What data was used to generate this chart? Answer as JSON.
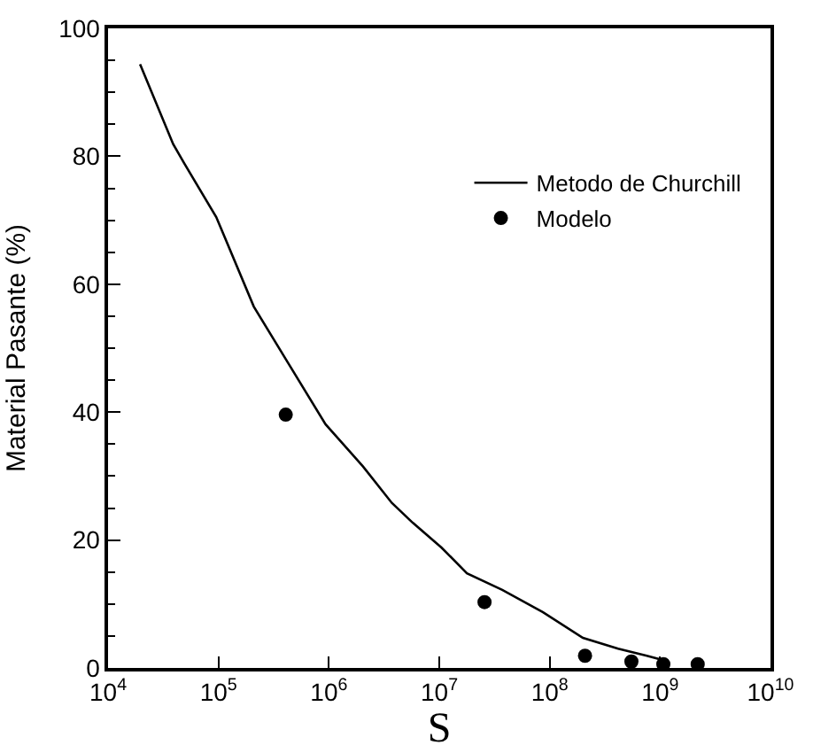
{
  "chart_data": {
    "type": "line",
    "xlabel": "S",
    "ylabel": "Material Pasante (%)",
    "log": "x",
    "xlim": [
      10000,
      10000000000
    ],
    "xticks": [
      {
        "value": 10000,
        "label": "10$^{4}$"
      },
      {
        "value": 100000,
        "label": "10$^{5}$"
      },
      {
        "value": 1000000,
        "label": "10$^{6}$"
      },
      {
        "value": 10000000,
        "label": "10$^{7}$"
      },
      {
        "value": 100000000,
        "label": "10$^{8}$"
      },
      {
        "value": 1000000000,
        "label": "10$^{9}$"
      },
      {
        "value": 10000000000,
        "label": "10$^{10}$"
      }
    ],
    "ylim": [
      0,
      100
    ],
    "yticks": [
      0,
      20,
      40,
      60,
      80,
      100
    ],
    "legend": "top right",
    "series": [
      {
        "name": "Metodo de Churchill",
        "color": "#000000",
        "line_style": "solid",
        "marker": "none",
        "x": [
          19500,
          38900,
          49000,
          95500,
          209000,
          427000,
          933000,
          2040000,
          3720000,
          5750000,
          10500000,
          17800000,
          37200000,
          87100000,
          200000000,
          417000000,
          759000000,
          1070000000
        ],
        "values": [
          94.4,
          81.9,
          78.9,
          70.5,
          56.5,
          47.7,
          38.1,
          31.5,
          25.8,
          22.7,
          18.8,
          14.8,
          12.2,
          8.7,
          4.7,
          3.0,
          1.9,
          1.2
        ]
      },
      {
        "name": "Modelo",
        "type": "scatter",
        "color": "#000000",
        "marker": "circle",
        "x": [
          407000,
          25700000,
          209000000,
          550000000,
          1070000000,
          2190000000
        ],
        "values": [
          39.6,
          10.3,
          1.9,
          1.0,
          0.6,
          0.6
        ]
      }
    ]
  }
}
